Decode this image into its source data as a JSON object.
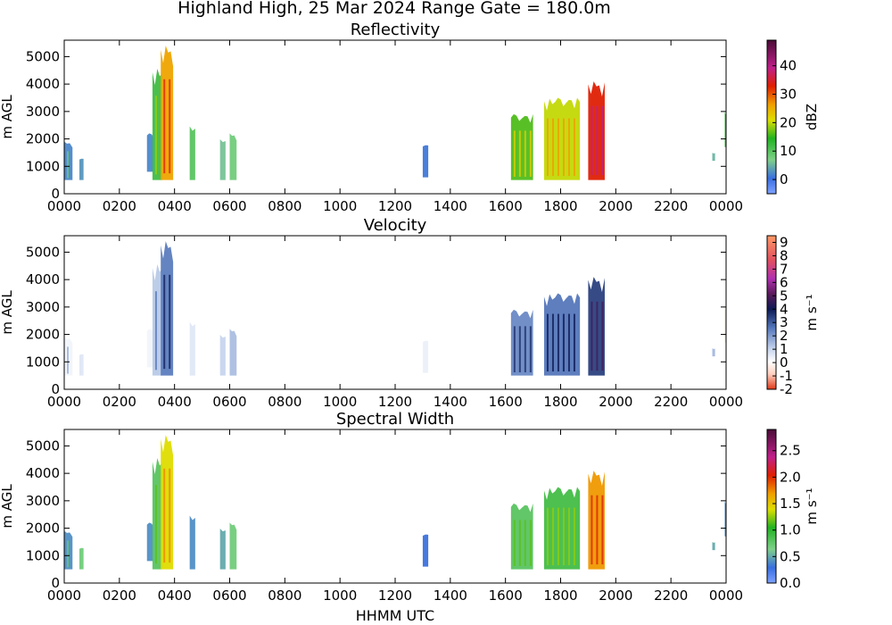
{
  "figure_title": "Highland High, 25 Mar 2024 Range Gate = 180.0m",
  "xlabel": "HHMM UTC",
  "chart_data": [
    {
      "type": "heatmap",
      "title": "Reflectivity",
      "ylabel": "m AGL",
      "xlabel": "HHMM UTC",
      "xlim": [
        0,
        24
      ],
      "ylim": [
        0,
        5600
      ],
      "xticks": [
        "0000",
        "0200",
        "0400",
        "0600",
        "0800",
        "1000",
        "1200",
        "1400",
        "1600",
        "1800",
        "2000",
        "2200",
        "0000"
      ],
      "yticks": [
        0,
        1000,
        2000,
        3000,
        4000,
        5000
      ],
      "colorbar": {
        "label": "dBZ",
        "ticks": [
          0,
          10,
          20,
          30,
          40
        ],
        "range": [
          -5,
          49
        ]
      },
      "echoes": [
        {
          "x0": 0.0,
          "x1": 0.3,
          "base": 500,
          "top": 1900,
          "value": 2
        },
        {
          "x0": 0.55,
          "x1": 0.7,
          "base": 500,
          "top": 1300,
          "value": 3
        },
        {
          "x0": 3.0,
          "x1": 3.25,
          "base": 800,
          "top": 2200,
          "value": 2
        },
        {
          "x0": 3.2,
          "x1": 3.55,
          "base": 500,
          "top": 4600,
          "value": 12
        },
        {
          "x0": 3.5,
          "x1": 3.95,
          "base": 500,
          "top": 5400,
          "value": 26
        },
        {
          "x0": 4.55,
          "x1": 4.75,
          "base": 500,
          "top": 2500,
          "value": 10
        },
        {
          "x0": 5.65,
          "x1": 5.85,
          "base": 500,
          "top": 2000,
          "value": 6
        },
        {
          "x0": 6.0,
          "x1": 6.25,
          "base": 500,
          "top": 2200,
          "value": 8
        },
        {
          "x0": 13.0,
          "x1": 13.2,
          "base": 600,
          "top": 1800,
          "value": 1
        },
        {
          "x0": 16.2,
          "x1": 17.0,
          "base": 500,
          "top": 2900,
          "value": 16
        },
        {
          "x0": 17.4,
          "x1": 18.7,
          "base": 500,
          "top": 3500,
          "value": 20
        },
        {
          "x0": 19.0,
          "x1": 19.6,
          "base": 500,
          "top": 4100,
          "value": 33
        },
        {
          "x0": 23.5,
          "x1": 23.6,
          "base": 1200,
          "top": 1500,
          "value": 5
        },
        {
          "x0": 23.95,
          "x1": 24.0,
          "base": 1700,
          "top": 3000,
          "value": 12
        }
      ]
    },
    {
      "type": "heatmap",
      "title": "Velocity",
      "ylabel": "m AGL",
      "xlabel": "HHMM UTC",
      "xlim": [
        0,
        24
      ],
      "ylim": [
        0,
        5600
      ],
      "xticks": [
        "0000",
        "0200",
        "0400",
        "0600",
        "0800",
        "1000",
        "1200",
        "1400",
        "1600",
        "1800",
        "2000",
        "2200",
        "0000"
      ],
      "yticks": [
        0,
        1000,
        2000,
        3000,
        4000,
        5000
      ],
      "colorbar": {
        "label": "m s⁻¹",
        "ticks": [
          -2,
          -1,
          0,
          1,
          2,
          3,
          4,
          5,
          6,
          7,
          8,
          9
        ],
        "range": [
          -2,
          9.5
        ]
      },
      "echoes": [
        {
          "x0": 0.0,
          "x1": 0.3,
          "base": 500,
          "top": 1900,
          "value": 0.3
        },
        {
          "x0": 0.55,
          "x1": 0.7,
          "base": 500,
          "top": 1300,
          "value": 0.6
        },
        {
          "x0": 3.0,
          "x1": 3.25,
          "base": 800,
          "top": 2200,
          "value": 0.3
        },
        {
          "x0": 3.2,
          "x1": 3.55,
          "base": 500,
          "top": 4600,
          "value": 1.2
        },
        {
          "x0": 3.5,
          "x1": 3.95,
          "base": 500,
          "top": 5400,
          "value": 2.5
        },
        {
          "x0": 4.55,
          "x1": 4.75,
          "base": 500,
          "top": 2500,
          "value": 0.6
        },
        {
          "x0": 5.65,
          "x1": 5.85,
          "base": 500,
          "top": 2000,
          "value": 1.0
        },
        {
          "x0": 6.0,
          "x1": 6.25,
          "base": 500,
          "top": 2200,
          "value": 1.4
        },
        {
          "x0": 13.0,
          "x1": 13.2,
          "base": 600,
          "top": 1800,
          "value": 0.4
        },
        {
          "x0": 16.2,
          "x1": 17.0,
          "base": 500,
          "top": 2900,
          "value": 2.3
        },
        {
          "x0": 17.4,
          "x1": 18.7,
          "base": 500,
          "top": 3500,
          "value": 2.6
        },
        {
          "x0": 19.0,
          "x1": 19.6,
          "base": 500,
          "top": 4100,
          "value": 3.4
        },
        {
          "x0": 23.5,
          "x1": 23.6,
          "base": 1200,
          "top": 1500,
          "value": 1.5
        },
        {
          "x0": 23.95,
          "x1": 24.0,
          "base": 1700,
          "top": 3000,
          "value": -0.6
        }
      ]
    },
    {
      "type": "heatmap",
      "title": "Spectral Width",
      "ylabel": "m AGL",
      "xlabel": "HHMM UTC",
      "xlim": [
        0,
        24
      ],
      "ylim": [
        0,
        5600
      ],
      "xticks": [
        "0000",
        "0200",
        "0400",
        "0600",
        "0800",
        "1000",
        "1200",
        "1400",
        "1600",
        "1800",
        "2000",
        "2200",
        "0000"
      ],
      "yticks": [
        0,
        1000,
        2000,
        3000,
        4000,
        5000
      ],
      "colorbar": {
        "label": "m s⁻¹",
        "ticks": [
          "0.0",
          "0.5",
          "1.0",
          "1.5",
          "2.0",
          "2.5"
        ],
        "range": [
          0,
          2.9
        ]
      },
      "echoes": [
        {
          "x0": 0.0,
          "x1": 0.3,
          "base": 500,
          "top": 1900,
          "value": 0.4
        },
        {
          "x0": 0.55,
          "x1": 0.7,
          "base": 500,
          "top": 1300,
          "value": 0.7
        },
        {
          "x0": 3.0,
          "x1": 3.25,
          "base": 800,
          "top": 2200,
          "value": 0.4
        },
        {
          "x0": 3.2,
          "x1": 3.55,
          "base": 500,
          "top": 4600,
          "value": 0.8
        },
        {
          "x0": 3.5,
          "x1": 3.95,
          "base": 500,
          "top": 5400,
          "value": 1.4
        },
        {
          "x0": 4.55,
          "x1": 4.75,
          "base": 500,
          "top": 2500,
          "value": 0.4
        },
        {
          "x0": 5.65,
          "x1": 5.85,
          "base": 500,
          "top": 2000,
          "value": 0.5
        },
        {
          "x0": 6.0,
          "x1": 6.25,
          "base": 500,
          "top": 2200,
          "value": 0.7
        },
        {
          "x0": 13.0,
          "x1": 13.2,
          "base": 600,
          "top": 1800,
          "value": 0.3
        },
        {
          "x0": 16.2,
          "x1": 17.0,
          "base": 500,
          "top": 2900,
          "value": 0.8
        },
        {
          "x0": 17.4,
          "x1": 18.7,
          "base": 500,
          "top": 3500,
          "value": 0.9
        },
        {
          "x0": 19.0,
          "x1": 19.6,
          "base": 500,
          "top": 4100,
          "value": 1.7
        },
        {
          "x0": 23.5,
          "x1": 23.6,
          "base": 1200,
          "top": 1500,
          "value": 0.5
        },
        {
          "x0": 23.95,
          "x1": 24.0,
          "base": 1700,
          "top": 3000,
          "value": 0.4
        }
      ]
    }
  ]
}
